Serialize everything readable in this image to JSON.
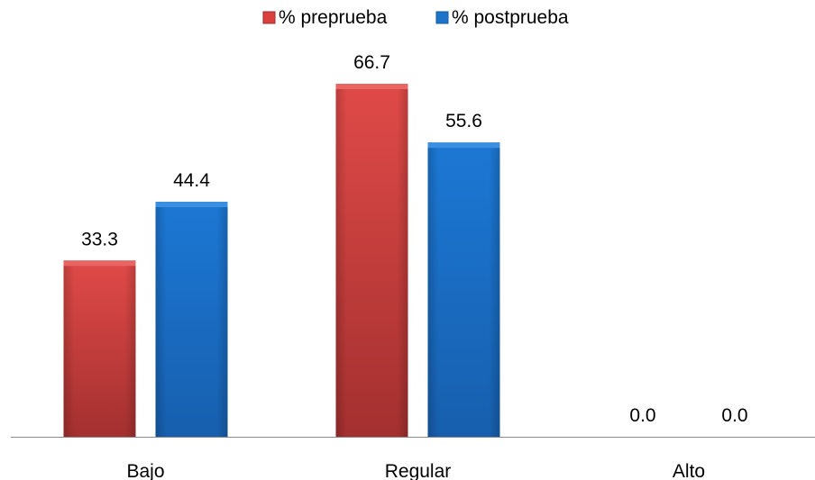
{
  "chart_data": {
    "type": "bar",
    "title": "",
    "xlabel": "",
    "ylabel": "",
    "categories": [
      "Bajo",
      "Regular",
      "Alto"
    ],
    "series": [
      {
        "name": "% preprueba",
        "values": [
          33.3,
          66.7,
          0.0
        ],
        "color": "#d9403e"
      },
      {
        "name": "% postprueba",
        "values": [
          44.4,
          55.6,
          0.0
        ],
        "color": "#1e74c8"
      }
    ],
    "value_labels": {
      "preprueba": [
        "33.3",
        "66.7",
        "0.0"
      ],
      "postprueba": [
        "44.4",
        "55.6",
        "0.0"
      ]
    },
    "ylim": [
      0,
      80
    ],
    "legend_position": "top-center",
    "grid": false
  },
  "legend": {
    "items": [
      {
        "label": "% preprueba",
        "color": "#d9403e"
      },
      {
        "label": "% postprueba",
        "color": "#1e74c8"
      }
    ]
  }
}
